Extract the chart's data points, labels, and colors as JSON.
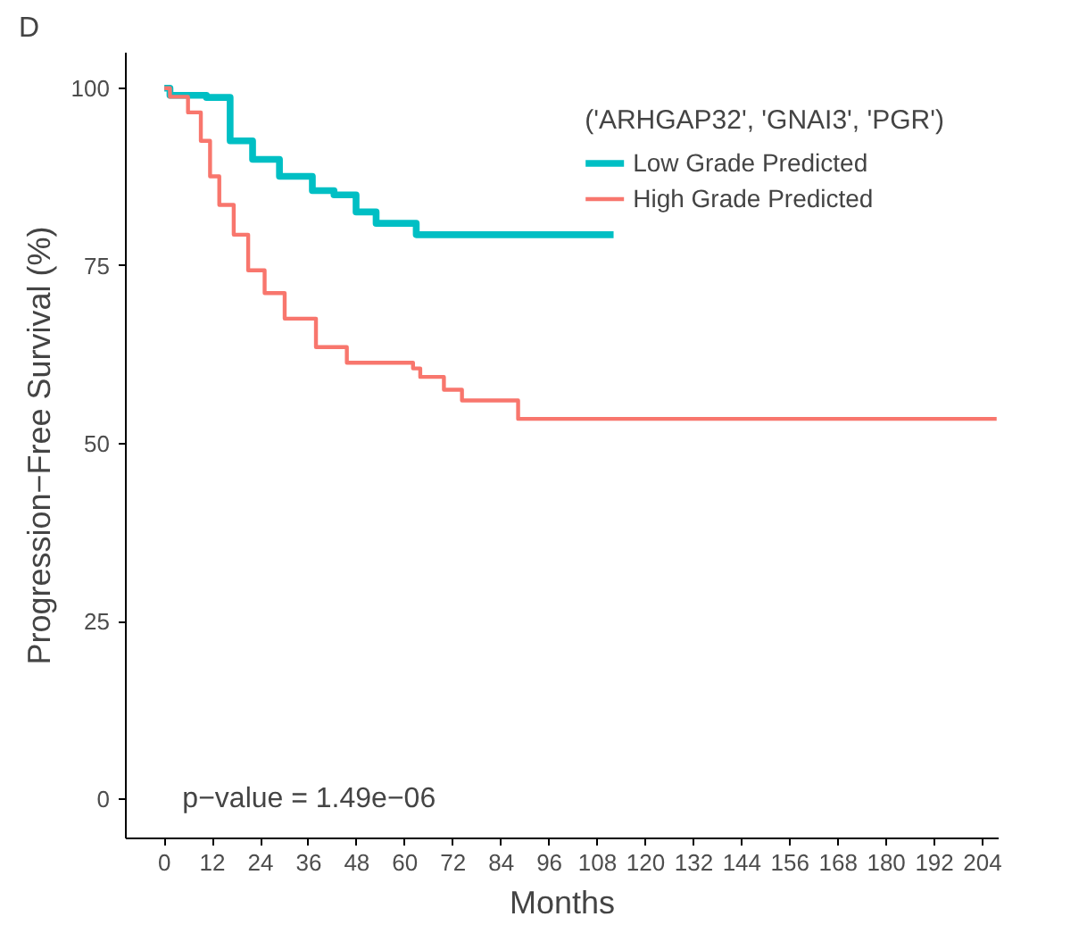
{
  "chart_data": {
    "type": "step",
    "title": "D",
    "xlabel": "Months",
    "ylabel": "Progression−Free Survival (%)",
    "legend_title": "('ARHGAP32', 'GNAI3', 'PGR')",
    "legend": "top right",
    "grid": false,
    "xlim": [
      -9.6,
      208
    ],
    "xticks": [
      0,
      12,
      24,
      36,
      48,
      60,
      72,
      84,
      96,
      108,
      120,
      132,
      144,
      156,
      168,
      180,
      192,
      204
    ],
    "ylim": [
      -5.5,
      105
    ],
    "yticks": [
      0,
      25,
      50,
      75,
      100
    ],
    "annotations": [
      "p−value = 1.49e−06"
    ],
    "series": [
      {
        "name": "Low Grade Predicted",
        "color": "#00bfc4",
        "x": [
          0,
          1.4,
          10.5,
          16.4,
          22,
          28.7,
          36.9,
          42.3,
          47.8,
          52.8,
          62.8,
          112
        ],
        "values": [
          100,
          99,
          98.7,
          92.6,
          90,
          87.6,
          85.6,
          85,
          82.6,
          81,
          79.4,
          79.4
        ]
      },
      {
        "name": "High Grade Predicted",
        "color": "#f8766d",
        "x": [
          0,
          1.4,
          5.9,
          9.1,
          11.4,
          13.7,
          17.3,
          20.9,
          25,
          30,
          37.8,
          45.5,
          62,
          63.8,
          69.7,
          74.2,
          88.2,
          207.5
        ],
        "values": [
          100,
          98.8,
          96.6,
          92.6,
          87.6,
          83.6,
          79.4,
          74.4,
          71.2,
          67.6,
          63.6,
          61.4,
          60.6,
          59.4,
          57.6,
          56.1,
          53.5,
          53.5
        ]
      }
    ]
  }
}
